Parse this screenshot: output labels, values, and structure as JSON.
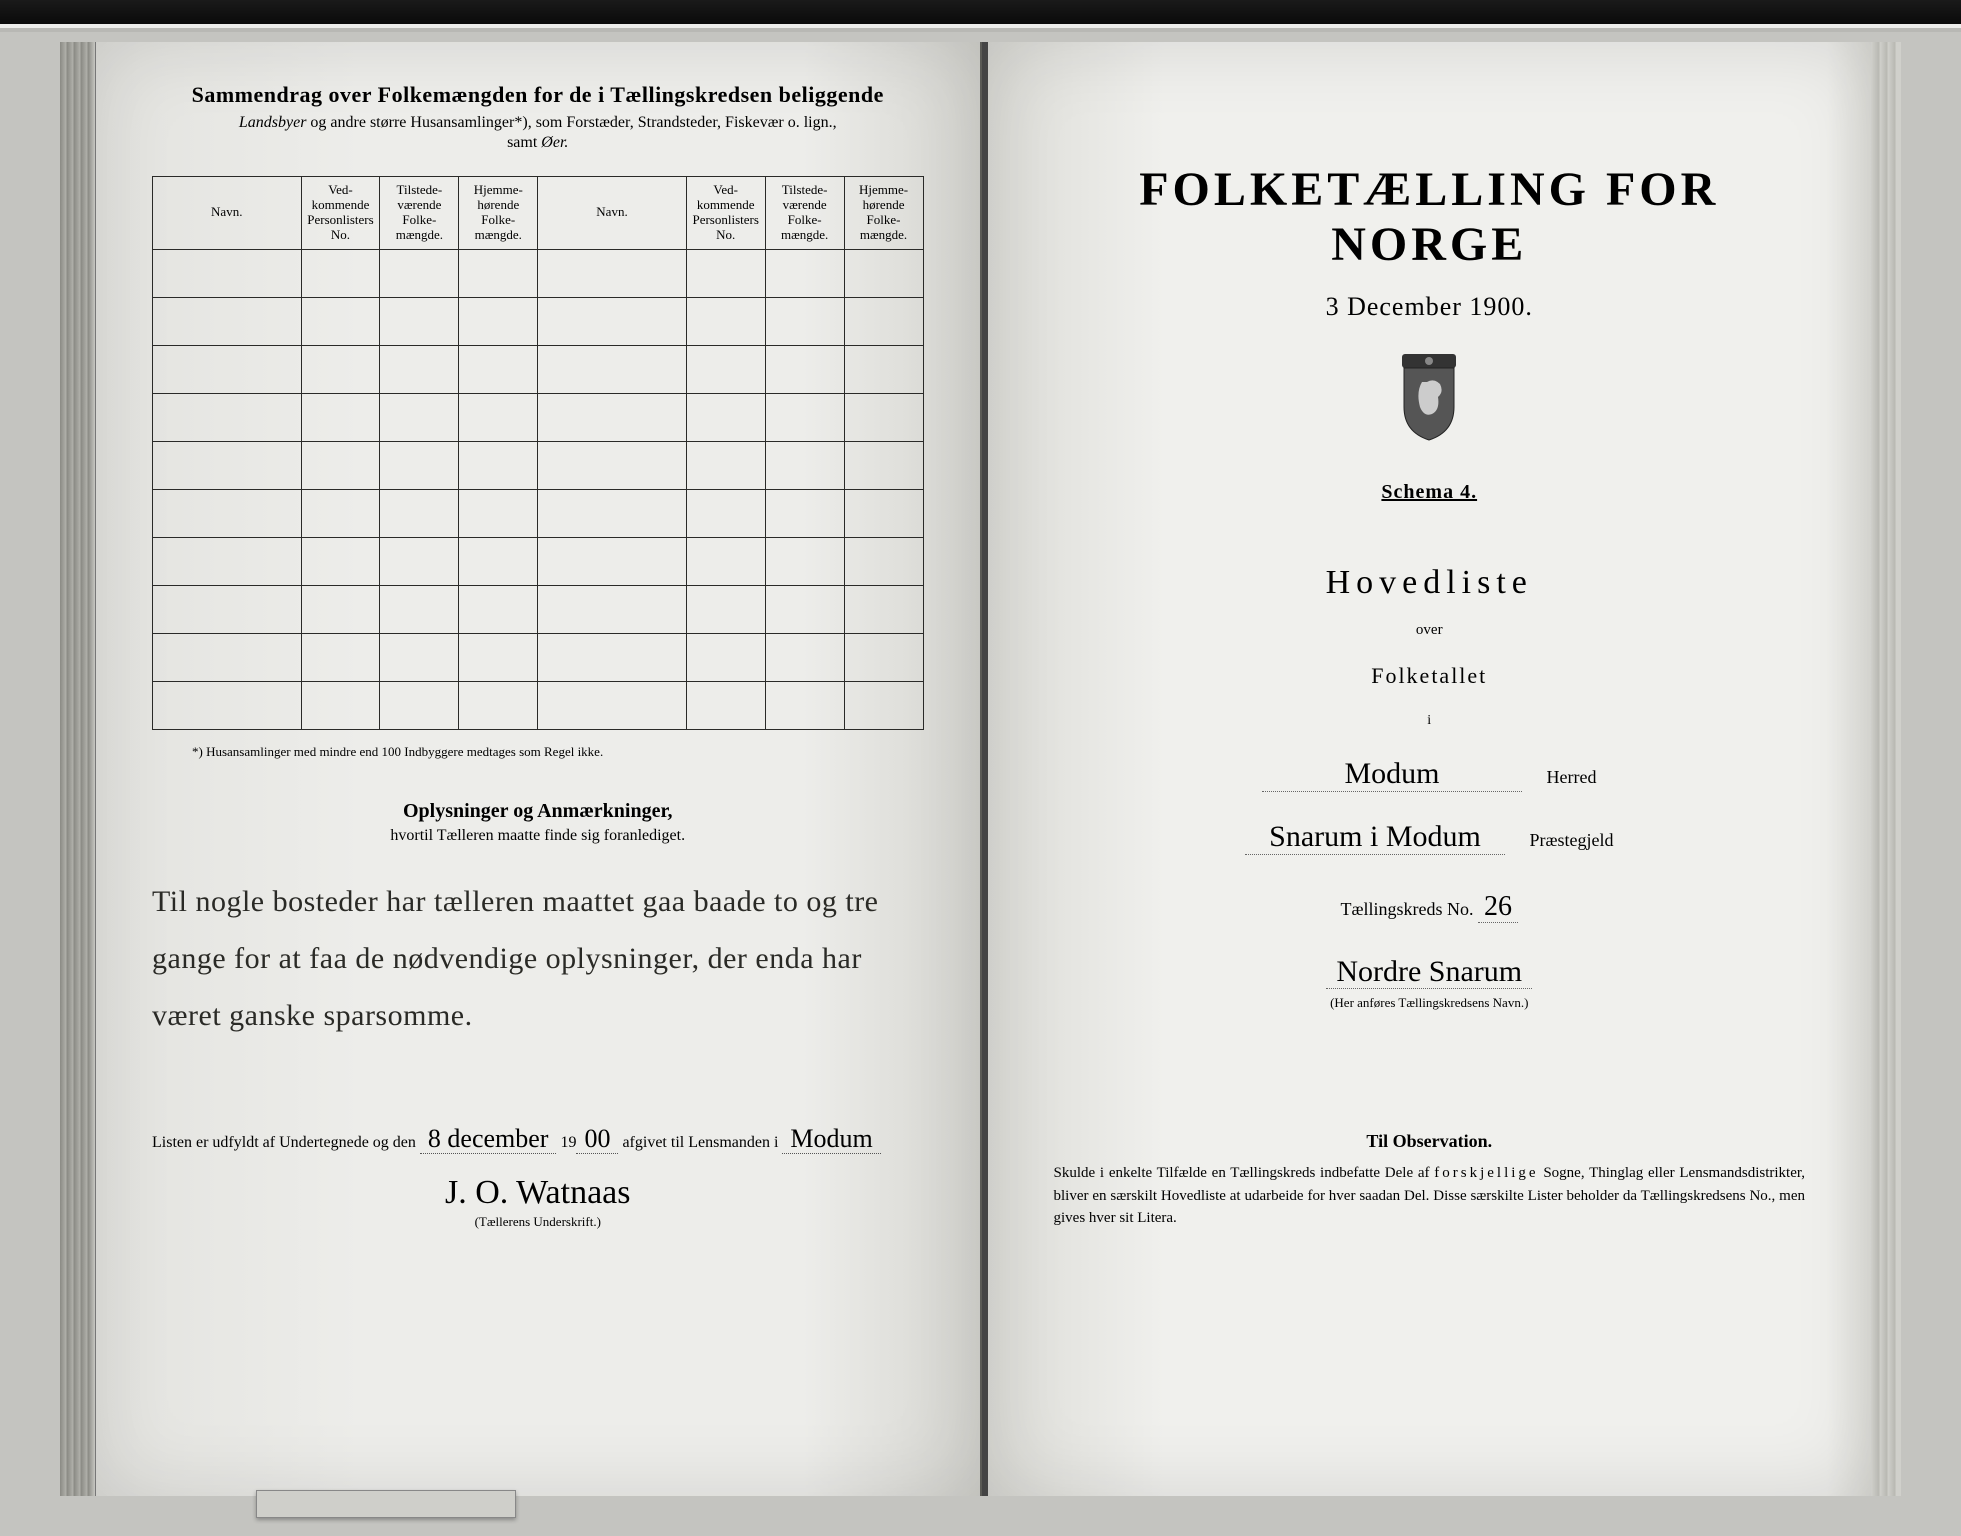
{
  "left": {
    "title": "Sammendrag over Folkemængden for de i Tællingskredsen beliggende",
    "subtitle_italic_1": "Landsbyer",
    "subtitle_mid": " og andre større Husansamlinger*), som Forstæder, Strandsteder, Fiskevær o. lign.,",
    "subtitle_line2_pre": "samt ",
    "subtitle_italic_2": "Øer.",
    "columns": {
      "navn": "Navn.",
      "vedk": "Ved-\nkommende\nPersonlisters\nNo.",
      "tilst": "Tilstede-\nværende\nFolke-\nmængde.",
      "hjemme": "Hjemme-\nhørende\nFolke-\nmængde."
    },
    "footnote": "*) Husansamlinger med mindre end 100 Indbyggere medtages som Regel ikke.",
    "oplys_title": "Oplysninger og Anmærkninger,",
    "oplys_sub": "hvortil Tælleren maatte finde sig foranlediget.",
    "handwritten_note": "Til nogle bosteder har tælleren maattet gaa baade to og tre gange for at faa de nødvendige oplysninger, der enda har været ganske sparsomme.",
    "listen_prefix": "Listen er udfyldt af Undertegnede og den ",
    "listen_date_hw": "8 december",
    "listen_mid": " 19",
    "listen_year_hw": "00",
    "listen_suffix": " afgivet til Lensmanden i ",
    "listen_place_hw": "Modum",
    "signature_hw": "J. O. Watnaas",
    "signature_label": "(Tællerens Underskrift.)"
  },
  "right": {
    "title": "FOLKETÆLLING FOR NORGE",
    "date": "3 December 1900.",
    "schema": "Schema 4.",
    "hovedliste": "Hovedliste",
    "over": "over",
    "folketallet": "Folketallet",
    "i": "i",
    "herred_hw": "Modum",
    "herred_lbl": "Herred",
    "praestegjeld_hw": "Snarum i Modum",
    "praestegjeld_lbl": "Præstegjeld",
    "tkreds_lbl": "Tællingskreds No. ",
    "tkreds_no_hw": "26",
    "kredsnavn_hw": "Nordre Snarum",
    "kredsnavn_sub": "(Her anføres Tællingskredsens Navn.)",
    "obs_title": "Til Observation.",
    "obs_body_1": "Skulde i enkelte Tilfælde en Tællingskreds indbefatte Dele af ",
    "obs_body_sp": "forskjellige",
    "obs_body_2": " Sogne, Thinglag eller Lensmandsdistrikter, bliver en særskilt Hovedliste at udarbeide for hver saadan Del. Disse særskilte Lister beholder da Tællingskredsens No., men gives hver sit Litera."
  },
  "table_row_count": 10
}
